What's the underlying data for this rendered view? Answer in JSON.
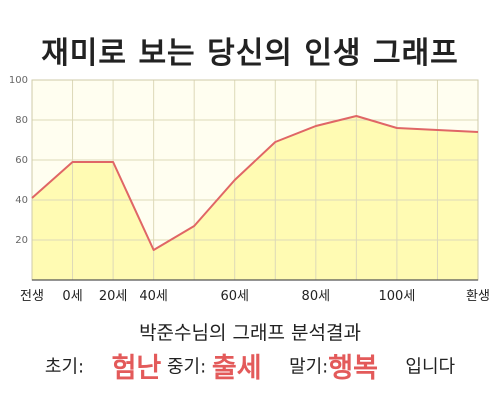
{
  "title": "재미로 보는 당신의 인생 그래프",
  "chart_data": {
    "type": "area",
    "x": [
      0,
      1,
      2,
      3,
      4,
      5,
      6,
      7,
      8,
      9,
      10,
      11
    ],
    "y": [
      41,
      59,
      59,
      15,
      27,
      50,
      69,
      77,
      82,
      76,
      75,
      74
    ],
    "x_tick_labels": [
      {
        "x": 0,
        "label": "전생"
      },
      {
        "x": 1,
        "label": "0세"
      },
      {
        "x": 2,
        "label": "20세"
      },
      {
        "x": 3,
        "label": "40세"
      },
      {
        "x": 5,
        "label": "60세"
      },
      {
        "x": 7,
        "label": "80세"
      },
      {
        "x": 9,
        "label": "100세"
      },
      {
        "x": 11,
        "label": "환생"
      }
    ],
    "y_ticks": [
      20,
      40,
      60,
      80,
      100
    ],
    "ylim": [
      0,
      100
    ],
    "grid": true,
    "colors": {
      "line": "#e06666",
      "fill": "#fffbb3",
      "plot_bg": "#fffef0",
      "grid": "#ddd9b8"
    }
  },
  "result": {
    "title": "박준수님의 그래프 분석결과",
    "early_label": "초기:",
    "early_value": "험난",
    "mid_label": "중기:",
    "mid_value": "출세",
    "late_label": "말기:",
    "late_value": "행복",
    "suffix": "입니다"
  }
}
